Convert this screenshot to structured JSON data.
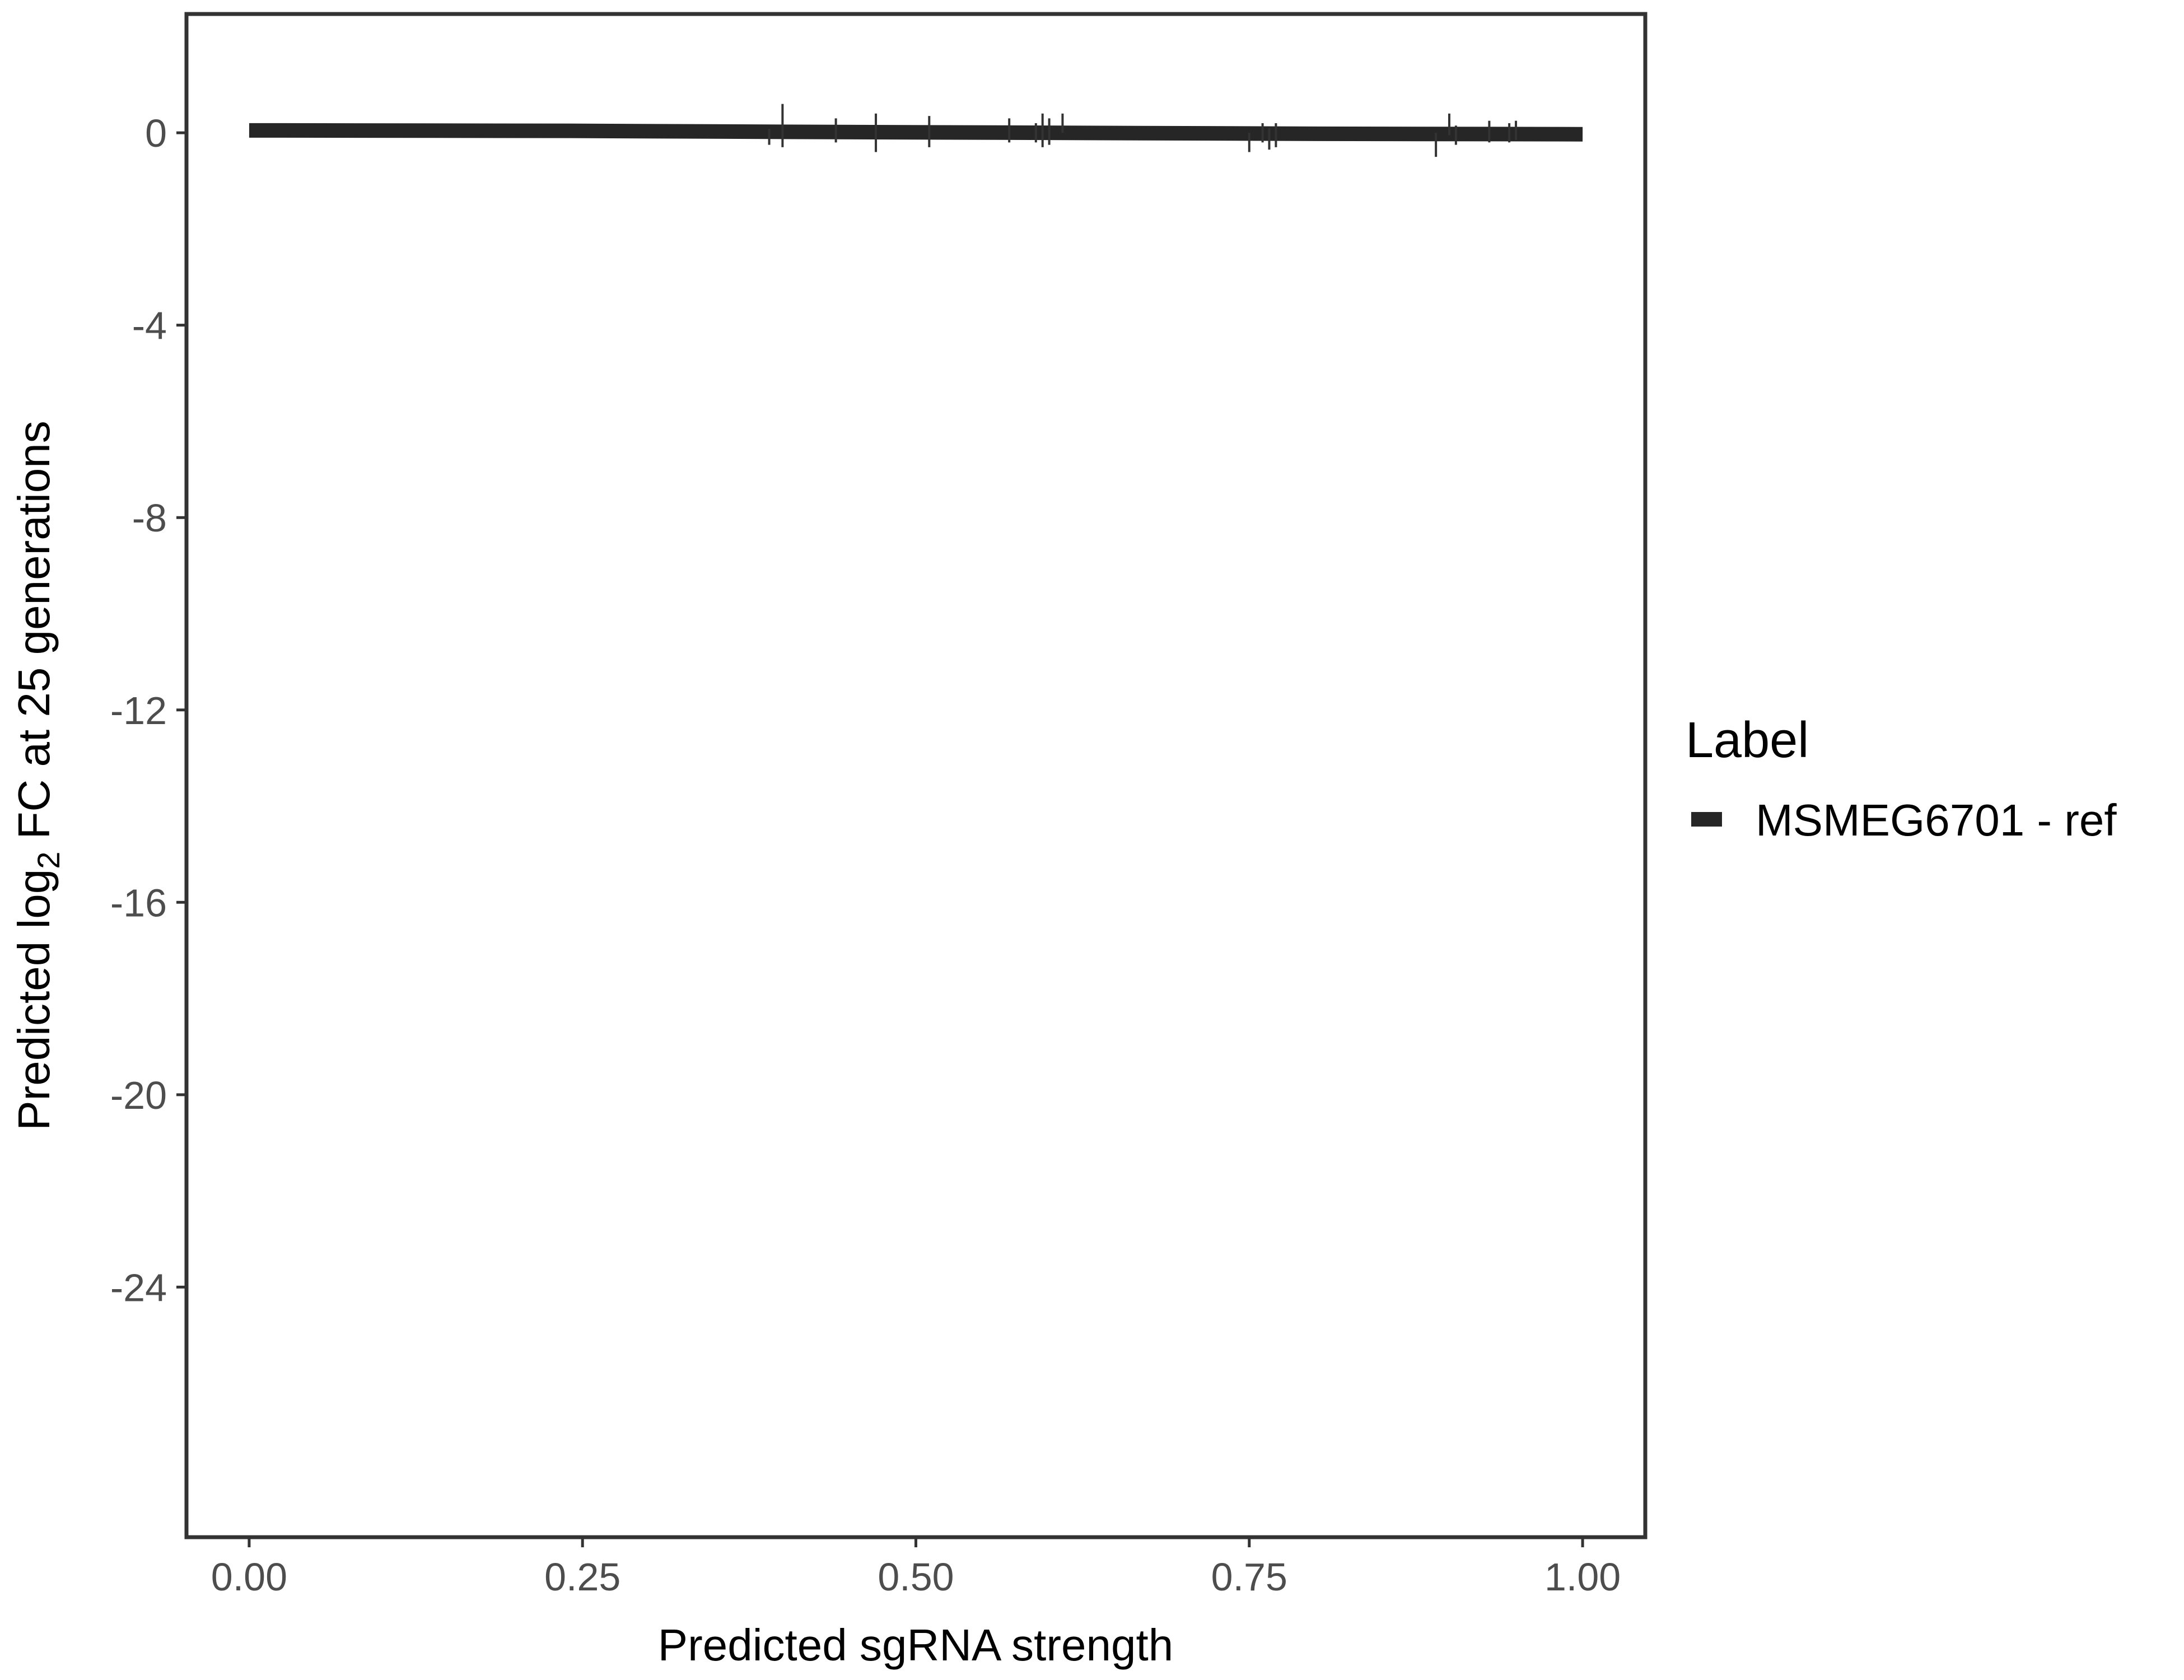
{
  "chart_data": {
    "type": "line",
    "title": "",
    "xlabel": "Predicted sgRNA strength",
    "ylabel_prefix": "Predicted  log",
    "ylabel_sub": "2",
    "ylabel_suffix": " FC at 25 generations",
    "xlim": [
      -0.047,
      1.047
    ],
    "ylim": [
      -29.2,
      2.47
    ],
    "xticks": [
      0,
      0.25,
      0.5,
      0.75,
      1
    ],
    "xtick_labels": [
      "0.00",
      "0.25",
      "0.50",
      "0.75",
      "1.00"
    ],
    "yticks": [
      0,
      -4,
      -8,
      -12,
      -16,
      -20,
      -24
    ],
    "ytick_labels": [
      "0",
      "-4",
      "-8",
      "-12",
      "-16",
      "-20",
      "-24"
    ],
    "grid": false,
    "legend": {
      "title": "Label",
      "position": "right",
      "entries": [
        "MSMEG6701 - ref"
      ]
    },
    "series": [
      {
        "name": "MSMEG6701 - ref",
        "color": "#262626",
        "x": [
          0.0,
          0.25,
          0.4,
          0.6,
          0.8,
          1.0
        ],
        "y": [
          0.05,
          0.04,
          0.02,
          0.0,
          -0.02,
          -0.03
        ]
      }
    ],
    "error_bars": {
      "x": [
        0.39,
        0.4,
        0.44,
        0.47,
        0.51,
        0.57,
        0.59,
        0.595,
        0.6,
        0.61,
        0.75,
        0.76,
        0.765,
        0.77,
        0.89,
        0.9,
        0.905,
        0.93,
        0.945,
        0.95
      ],
      "ymin": [
        -0.25,
        -0.3,
        -0.2,
        -0.4,
        -0.3,
        -0.2,
        -0.2,
        -0.3,
        -0.25,
        0.0,
        -0.4,
        -0.2,
        -0.35,
        -0.3,
        -0.5,
        -0.05,
        -0.25,
        -0.2,
        -0.2,
        -0.15
      ],
      "ymax": [
        0.08,
        0.6,
        0.3,
        0.4,
        0.35,
        0.3,
        0.2,
        0.4,
        0.3,
        0.4,
        0.0,
        0.2,
        0.1,
        0.2,
        0.0,
        0.4,
        0.15,
        0.25,
        0.2,
        0.25
      ]
    }
  }
}
